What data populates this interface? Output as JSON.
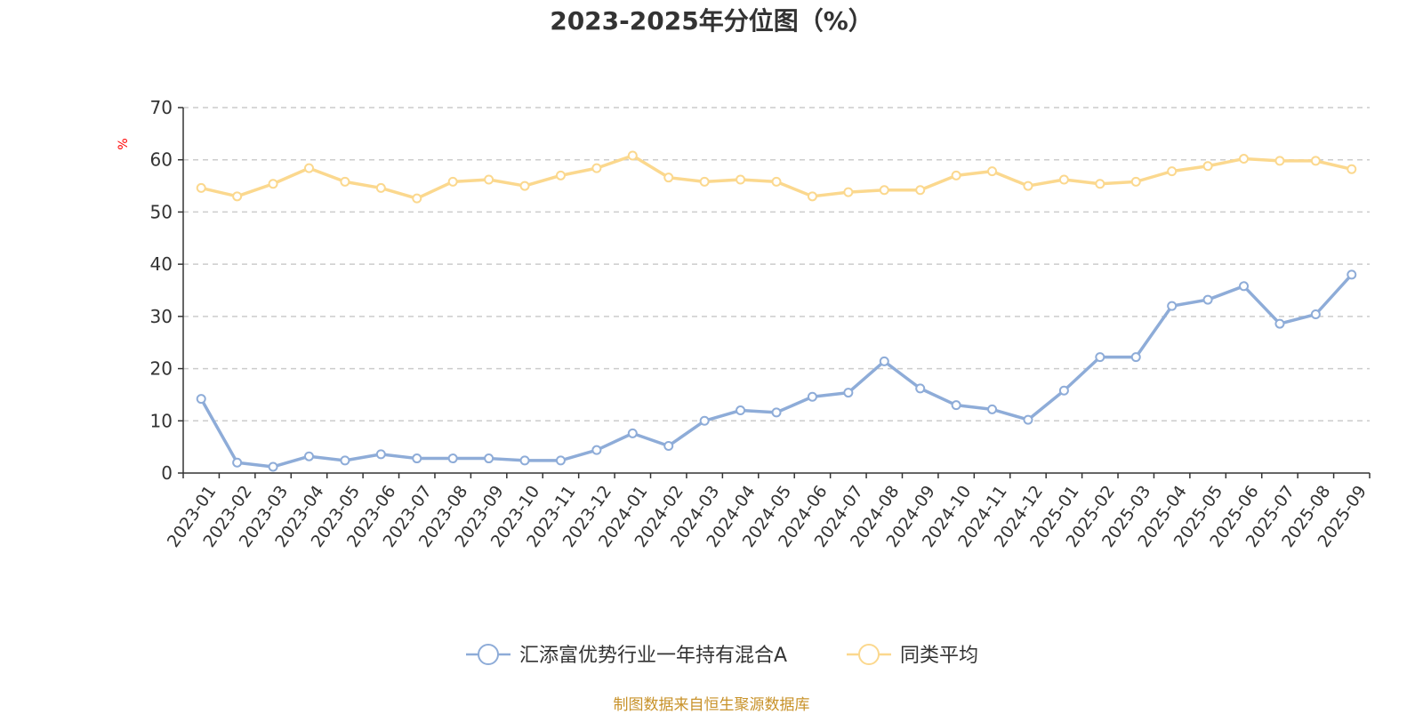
{
  "chart_data": {
    "type": "line",
    "title": "2023-2025年分位图（%）",
    "ylabel": "%",
    "ylim": [
      0,
      70
    ],
    "yticks": [
      0,
      10,
      20,
      30,
      40,
      50,
      60,
      70
    ],
    "grid": true,
    "legend_position": "bottom-center",
    "categories": [
      "2023-01",
      "2023-02",
      "2023-03",
      "2023-04",
      "2023-05",
      "2023-06",
      "2023-07",
      "2023-08",
      "2023-09",
      "2023-10",
      "2023-11",
      "2023-12",
      "2024-01",
      "2024-02",
      "2024-03",
      "2024-04",
      "2024-05",
      "2024-06",
      "2024-07",
      "2024-08",
      "2024-09",
      "2024-10",
      "2024-11",
      "2024-12",
      "2025-01",
      "2025-02",
      "2025-03",
      "2025-04",
      "2025-05",
      "2025-06",
      "2025-07",
      "2025-08",
      "2025-09"
    ],
    "series": [
      {
        "name": "汇添富优势行业一年持有混合A",
        "color": "#8eacd8",
        "values": [
          14.2,
          2.0,
          1.2,
          3.2,
          2.4,
          3.6,
          2.8,
          2.8,
          2.8,
          2.4,
          2.4,
          4.4,
          7.6,
          5.2,
          10.0,
          12.0,
          11.6,
          14.6,
          15.4,
          21.4,
          16.2,
          13.0,
          12.2,
          10.2,
          15.8,
          22.2,
          22.2,
          32.0,
          33.2,
          35.8,
          28.6,
          30.4,
          38.0
        ]
      },
      {
        "name": "同类平均",
        "color": "#fbd88e",
        "values": [
          54.6,
          53.0,
          55.4,
          58.4,
          55.8,
          54.6,
          52.6,
          55.8,
          56.2,
          55.0,
          57.0,
          58.4,
          60.8,
          56.6,
          55.8,
          56.2,
          55.8,
          53.0,
          53.8,
          54.2,
          54.2,
          57.0,
          57.8,
          55.0,
          56.2,
          55.4,
          55.8,
          57.8,
          58.8,
          60.2,
          59.8,
          59.8,
          58.2
        ]
      }
    ]
  },
  "source_note": "制图数据来自恒生聚源数据库"
}
